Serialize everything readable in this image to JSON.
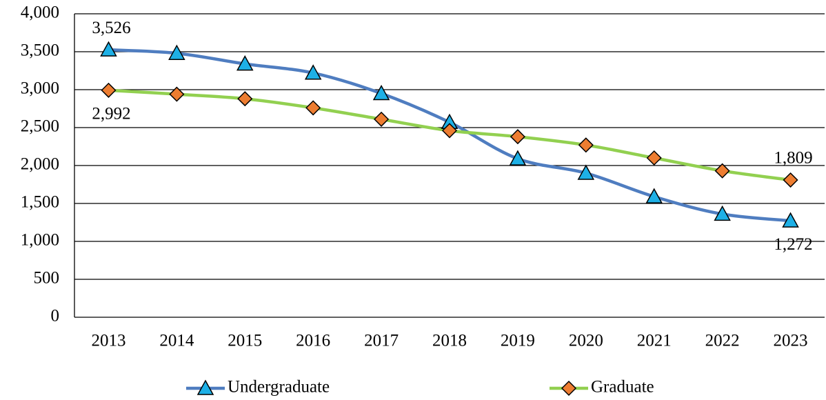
{
  "chart_data": {
    "type": "line",
    "categories": [
      "2013",
      "2014",
      "2015",
      "2016",
      "2017",
      "2018",
      "2019",
      "2020",
      "2021",
      "2022",
      "2023"
    ],
    "series": [
      {
        "name": "Undergraduate",
        "color": "#4f7dc0",
        "marker": "triangle",
        "marker_color": "#1eb0e6",
        "values": [
          3526,
          3480,
          3340,
          3220,
          2950,
          2570,
          2090,
          1900,
          1590,
          1360,
          1272
        ],
        "value_labels": [
          "3,526",
          null,
          null,
          null,
          null,
          null,
          null,
          null,
          null,
          null,
          "1,272"
        ]
      },
      {
        "name": "Graduate",
        "color": "#92d050",
        "marker": "diamond",
        "marker_color": "#ed7d31",
        "values": [
          2992,
          2940,
          2880,
          2760,
          2610,
          2460,
          2380,
          2270,
          2100,
          1930,
          1809
        ],
        "value_labels": [
          "2,992",
          null,
          null,
          null,
          null,
          null,
          null,
          null,
          null,
          null,
          "1,809"
        ]
      }
    ],
    "ylim": [
      0,
      4000
    ],
    "yticks": [
      0,
      500,
      {
        "value": 1000,
        "label": "1,000"
      },
      {
        "value": 1500,
        "label": "1,500"
      },
      {
        "value": 2000,
        "label": "2,000"
      },
      {
        "value": 2500,
        "label": "2,500"
      },
      {
        "value": 3000,
        "label": "3,000"
      },
      {
        "value": 3500,
        "label": "3,500"
      },
      {
        "value": 4000,
        "label": "4,000"
      }
    ],
    "grid": true,
    "legend": "bottom"
  }
}
